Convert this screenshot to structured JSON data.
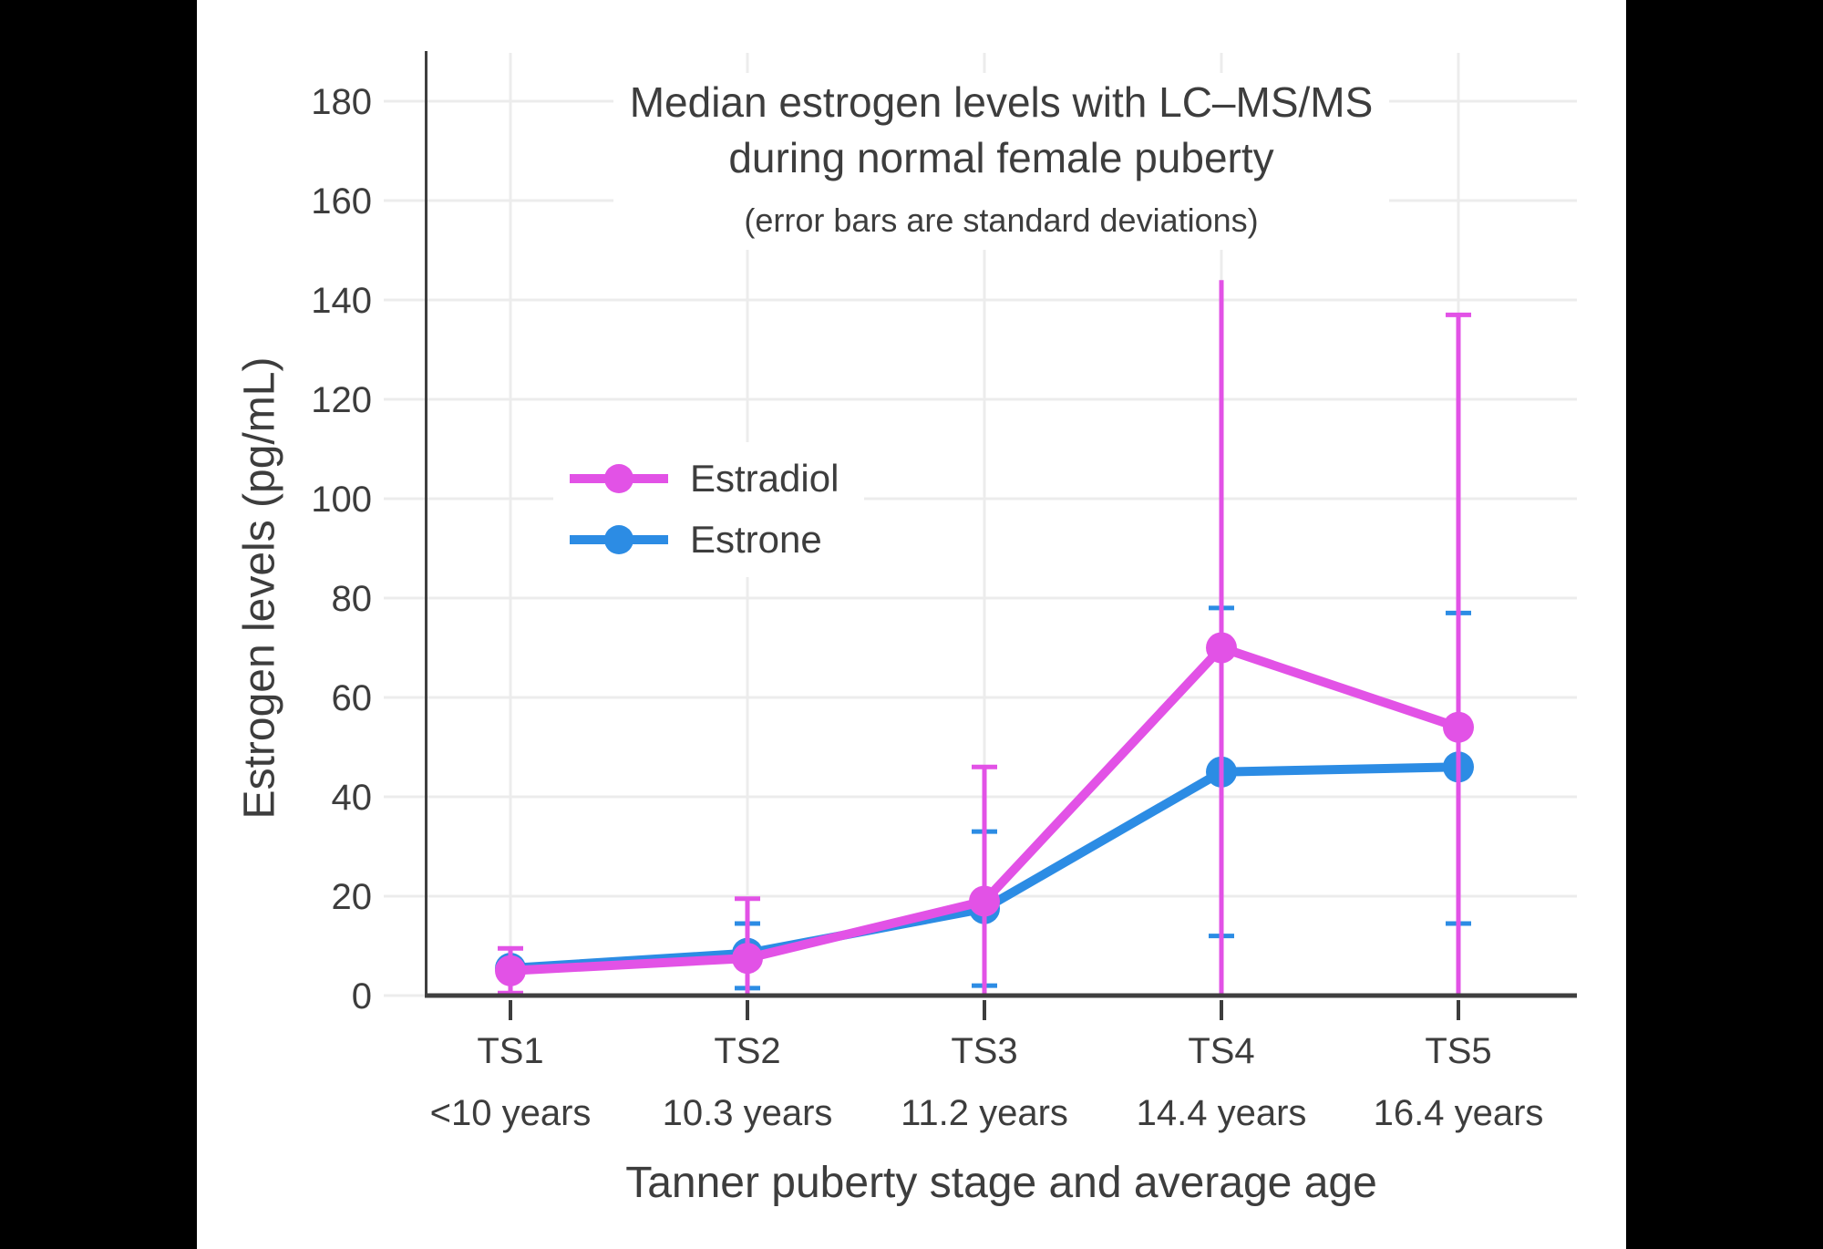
{
  "canvas": {
    "background": "#000000",
    "content_background": "#ffffff",
    "text_color": "#3d3d3d",
    "grid_color": "#ececec",
    "axis_color": "#3f3f3f"
  },
  "chart_data": {
    "type": "line",
    "title_lines": [
      "Median estrogen levels with LC–MS/MS",
      "during normal female puberty"
    ],
    "subtitle": "(error bars are standard deviations)",
    "xlabel": "Tanner puberty stage and average age",
    "ylabel": "Estrogen levels (pg/mL)",
    "categories": [
      "TS1",
      "TS2",
      "TS3",
      "TS4",
      "TS5"
    ],
    "category_sublabels": [
      "<10 years",
      "10.3 years",
      "11.2 years",
      "14.4 years",
      "16.4 years"
    ],
    "y_ticks": [
      0,
      20,
      40,
      60,
      80,
      100,
      120,
      140,
      160,
      180
    ],
    "ylim": [
      0,
      190
    ],
    "grid": true,
    "legend_position": "inside upper-left of plot",
    "series": [
      {
        "name": "Estradiol",
        "color": "#e252e6",
        "values": [
          5,
          7.5,
          19,
          70,
          54
        ],
        "error_high": [
          9.5,
          19.5,
          46,
          144,
          137
        ],
        "error_high_cap": [
          true,
          true,
          true,
          false,
          true
        ],
        "error_low": [
          0.5,
          0,
          0,
          0,
          0
        ],
        "error_low_cap": [
          true,
          false,
          false,
          false,
          false
        ]
      },
      {
        "name": "Estrone",
        "color": "#2c8ce4",
        "values": [
          5.5,
          8.5,
          17.5,
          45,
          46
        ],
        "error_high": [
          null,
          14.5,
          33,
          78,
          77
        ],
        "error_high_cap": [
          false,
          true,
          true,
          true,
          true
        ],
        "error_low": [
          null,
          1.5,
          2,
          12,
          14.5
        ],
        "error_low_cap": [
          false,
          true,
          true,
          true,
          true
        ]
      }
    ]
  }
}
